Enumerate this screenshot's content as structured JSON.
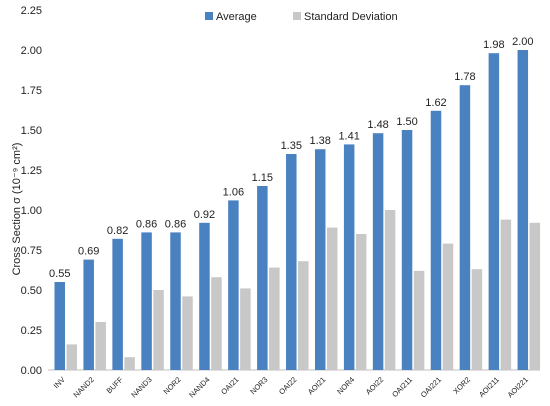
{
  "chart_data": {
    "type": "bar",
    "categories": [
      "INV",
      "NAND2",
      "BUFF",
      "NAND3",
      "NOR2",
      "NAND4",
      "OAI21",
      "NOR3",
      "OAI22",
      "AOI21",
      "NOR4",
      "AOI22",
      "OAI211",
      "OAI221",
      "XOR2",
      "AOI211",
      "AOI221"
    ],
    "series": [
      {
        "name": "Average",
        "color": "#4a81c0",
        "values": [
          0.55,
          0.69,
          0.82,
          0.86,
          0.86,
          0.92,
          1.06,
          1.15,
          1.35,
          1.38,
          1.41,
          1.48,
          1.5,
          1.62,
          1.78,
          1.98,
          2.0
        ],
        "data_labels": [
          "0.55",
          "0.69",
          "0.82",
          "0.86",
          "0.86",
          "0.92",
          "1.06",
          "1.15",
          "1.35",
          "1.38",
          "1.41",
          "1.48",
          "1.50",
          "1.62",
          "1.78",
          "1.98",
          "2.00"
        ]
      },
      {
        "name": "Standard Deviation",
        "color": "#c8c8c8",
        "values": [
          0.16,
          0.3,
          0.08,
          0.5,
          0.46,
          0.58,
          0.51,
          0.64,
          0.68,
          0.89,
          0.85,
          1.0,
          0.62,
          0.79,
          0.63,
          0.94,
          0.92
        ]
      }
    ],
    "title": "",
    "xlabel": "",
    "ylabel": "Cross Section σ (10⁻⁹ cm²)",
    "ylim": [
      0,
      2.25
    ],
    "yticks": [
      "0.00",
      "0.25",
      "0.50",
      "0.75",
      "1.00",
      "1.25",
      "1.50",
      "1.75",
      "2.00",
      "2.25"
    ],
    "grid": false,
    "legend_position": "top-center"
  }
}
